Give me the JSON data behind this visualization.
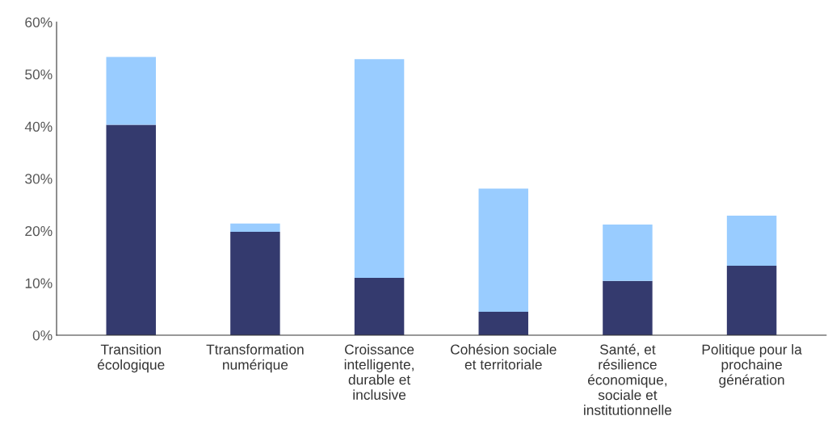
{
  "chart_data": {
    "type": "bar",
    "stacked": true,
    "categories": [
      "Transition\nécologique",
      "Ttransformation\nnumérique",
      "Croissance\nintelligente,\ndurable et\ninclusive",
      "Cohésion sociale\net territoriale",
      "Santé, et\nrésilience\néconomique,\nsociale et\ninstitutionnelle",
      "Politique pour la\nprochaine\ngénération"
    ],
    "series": [
      {
        "color": "#343a6e",
        "values": [
          40.3,
          19.8,
          11.0,
          4.5,
          10.4,
          13.3
        ]
      },
      {
        "color": "#99ccff",
        "values": [
          13.0,
          1.6,
          41.9,
          23.6,
          10.8,
          9.6
        ]
      }
    ],
    "ylim": [
      0,
      60
    ],
    "yticks": [
      {
        "value": 0,
        "label": "0%"
      },
      {
        "value": 10,
        "label": "10%"
      },
      {
        "value": 20,
        "label": "20%"
      },
      {
        "value": 30,
        "label": "30%"
      },
      {
        "value": 40,
        "label": "40%"
      },
      {
        "value": 50,
        "label": "50%"
      },
      {
        "value": 60,
        "label": "60%"
      }
    ],
    "grid": false,
    "legend": false
  }
}
